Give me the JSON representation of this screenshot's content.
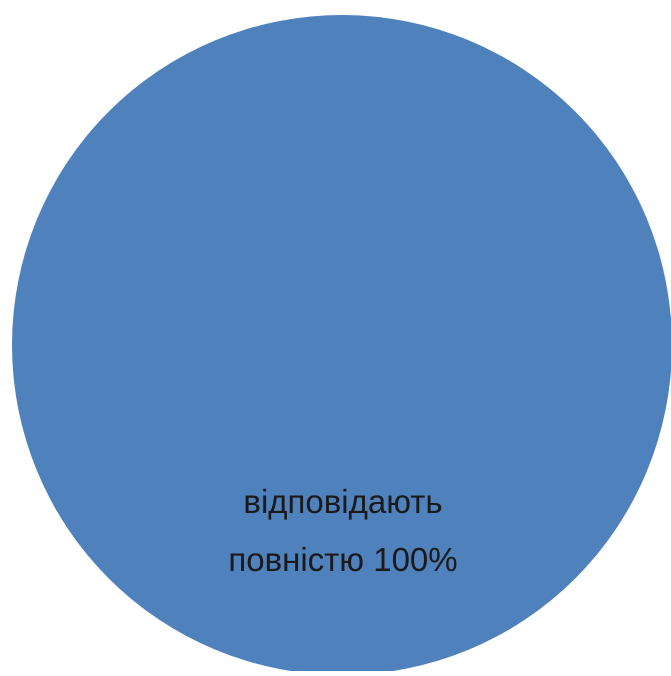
{
  "chart_data": {
    "type": "pie",
    "title": "",
    "categories": [
      "відповідають повністю"
    ],
    "values": [
      100
    ],
    "slices": [
      {
        "label_line1": "відповідають",
        "label_line2": "повністю  100%",
        "category": "відповідають повністю",
        "value": 100,
        "percent_text": "100%",
        "color": "#4f81bd"
      }
    ],
    "legend": "none"
  }
}
